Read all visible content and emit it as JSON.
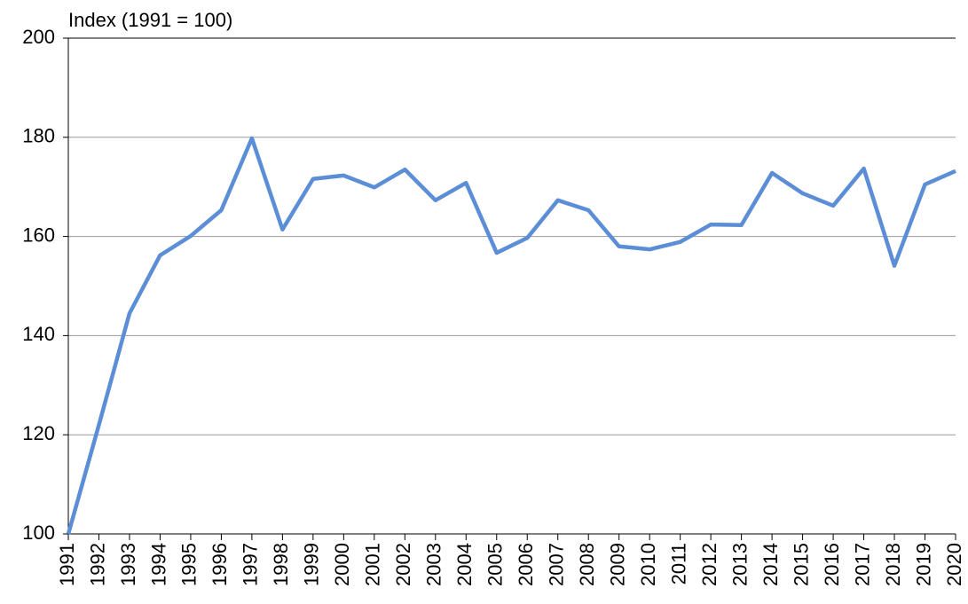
{
  "chart_data": {
    "type": "line",
    "title": "Index (1991 = 100)",
    "categories": [
      "1991",
      "1992",
      "1993",
      "1994",
      "1995",
      "1996",
      "1997",
      "1998",
      "1999",
      "2000",
      "2001",
      "2002",
      "2003",
      "2004",
      "2005",
      "2006",
      "2007",
      "2008",
      "2009",
      "2010",
      "2011",
      "2012",
      "2013",
      "2014",
      "2015",
      "2016",
      "2017",
      "2018",
      "2019",
      "2020"
    ],
    "series": [
      {
        "name": "Index",
        "color": "#5b8ed6",
        "values": [
          100,
          122,
          144.5,
          156.2,
          160.1,
          165.3,
          179.8,
          161.4,
          171.6,
          172.3,
          169.9,
          173.5,
          167.3,
          170.8,
          156.7,
          159.7,
          167.3,
          165.3,
          158.0,
          157.4,
          158.9,
          162.4,
          162.3,
          172.8,
          168.7,
          166.2,
          173.7,
          154.1,
          170.5,
          173.2
        ]
      }
    ],
    "ylim": [
      100,
      200
    ],
    "yticks": [
      100,
      120,
      140,
      160,
      180,
      200
    ],
    "grid": true
  }
}
